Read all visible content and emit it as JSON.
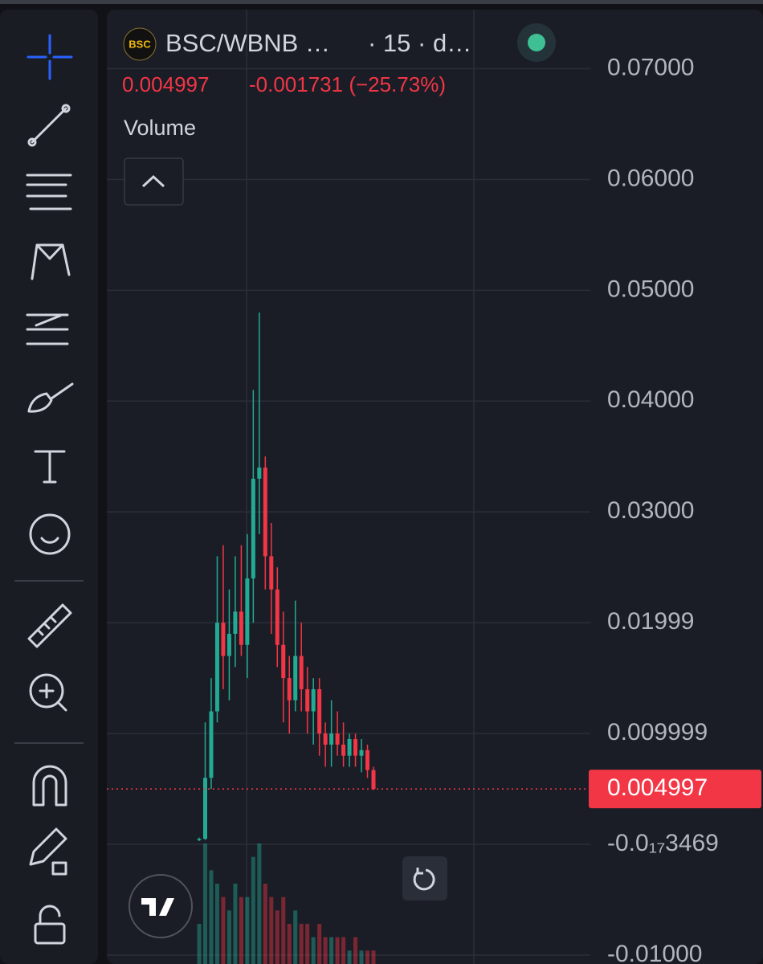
{
  "header": {
    "logo": "BSC",
    "symbol": "BSC/WBNB …",
    "interval": "· 15 · d…",
    "study": "Volume"
  },
  "chart_data": {
    "type": "candlestick",
    "categories": [
      null,
      null,
      null,
      null,
      null,
      null,
      null,
      null,
      null,
      null,
      null,
      null,
      null,
      null,
      null,
      null,
      null,
      null,
      null,
      null,
      null,
      null,
      null,
      null,
      null,
      null,
      null,
      null,
      null,
      null
    ],
    "open": [
      0.0004,
      0.0005,
      0.006,
      0.012,
      0.02,
      0.017,
      0.019,
      0.021,
      0.018,
      0.024,
      0.033,
      0.034,
      0.026,
      0.023,
      0.018,
      0.015,
      0.013,
      0.017,
      0.014,
      0.012,
      0.014,
      0.01,
      0.009,
      0.01,
      0.009,
      0.008,
      0.0095,
      0.008,
      0.0085,
      0.0067
    ],
    "high": [
      0.0006,
      0.011,
      0.015,
      0.026,
      0.027,
      0.023,
      0.026,
      0.027,
      0.028,
      0.041,
      0.048,
      0.035,
      0.029,
      0.025,
      0.021,
      0.017,
      0.022,
      0.02,
      0.016,
      0.015,
      0.015,
      0.011,
      0.013,
      0.012,
      0.011,
      0.01,
      0.01,
      0.0095,
      0.009,
      0.007
    ],
    "low": [
      0.0003,
      0.0004,
      0.005,
      0.011,
      0.014,
      0.013,
      0.016,
      0.017,
      0.015,
      0.02,
      0.028,
      0.023,
      0.019,
      0.016,
      0.011,
      0.01,
      0.012,
      0.012,
      0.01,
      0.009,
      0.008,
      0.007,
      0.007,
      0.008,
      0.007,
      0.007,
      0.007,
      0.0065,
      0.006,
      0.0049
    ],
    "close": [
      0.0005,
      0.006,
      0.012,
      0.02,
      0.017,
      0.019,
      0.021,
      0.018,
      0.024,
      0.033,
      0.034,
      0.026,
      0.023,
      0.018,
      0.015,
      0.013,
      0.017,
      0.014,
      0.012,
      0.014,
      0.01,
      0.009,
      0.01,
      0.009,
      0.008,
      0.0095,
      0.008,
      0.0085,
      0.0067,
      0.004997
    ],
    "volume": [
      3,
      9,
      7,
      6,
      5,
      4,
      6,
      5,
      5,
      8,
      9,
      6,
      5,
      4,
      5,
      3,
      4,
      3,
      3,
      2,
      3,
      2,
      2,
      2,
      2,
      1,
      2,
      1,
      1,
      1
    ],
    "up_color": "#22ab94",
    "down_color": "#f23645",
    "last_price": {
      "value": 0.004997,
      "label": "0.004997"
    },
    "change_label": "-0.001731 (−25.73%)",
    "ylim": [
      -0.0108,
      0.0762
    ],
    "yticks": [
      {
        "value": 0.07,
        "label": "0.07000"
      },
      {
        "value": 0.06,
        "label": "0.06000"
      },
      {
        "value": 0.05,
        "label": "0.05000"
      },
      {
        "value": 0.04,
        "label": "0.04000"
      },
      {
        "value": 0.03,
        "label": "0.03000"
      },
      0.01999,
      0.009999,
      {
        "value": -3.469e-18,
        "label": "-0.0₁₇3469"
      },
      {
        "value": -0.01,
        "label": "-0.01000"
      }
    ],
    "grid": true
  }
}
